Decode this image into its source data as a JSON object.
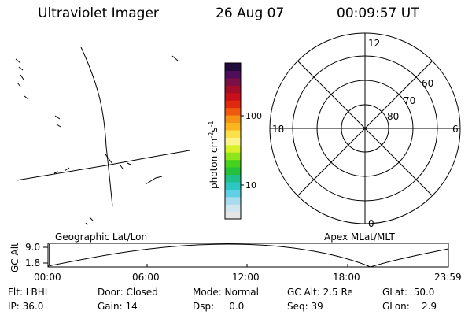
{
  "header": {
    "title": "Ultraviolet Imager",
    "date": "26 Aug 07",
    "time": "00:09:57 UT"
  },
  "colorbar": {
    "unit": "photon cm",
    "exp1": "-2",
    "s": "s",
    "exp2": "-1",
    "ticks": [
      "100",
      "10"
    ],
    "colors": [
      "#e6e6e6",
      "#cfe6ee",
      "#a8dcec",
      "#5fd0e6",
      "#2cc7c0",
      "#20c08a",
      "#25c13a",
      "#46d11c",
      "#8ee51a",
      "#d8f02a",
      "#fbf48a",
      "#fde04a",
      "#fbb51e",
      "#f69316",
      "#ef5a0e",
      "#e02a0e",
      "#c8101a",
      "#a40c2a",
      "#7a1046",
      "#4e0e5a",
      "#220c3c"
    ]
  },
  "polar": {
    "mlt": {
      "top": "12",
      "left": "18",
      "right": "6",
      "bottom": "0"
    },
    "mlat": [
      "60",
      "70",
      "80"
    ]
  },
  "timeline": {
    "left_label": "Geographic Lat/Lon",
    "right_label": "Apex MLat/MLT",
    "axis_label": "GC Alt",
    "ymax": "9.0",
    "ymin": "1.8",
    "ticks": [
      "00:00",
      "06:00",
      "12:00",
      "18:00",
      "23:59"
    ]
  },
  "info": {
    "flt": "Flt: LBHL",
    "ip": "IP: 36.0",
    "door": "Door: Closed",
    "gain": "Gain: 14",
    "mode": "Mode: Normal",
    "dsp": "Dsp:     0.0",
    "gcalt": "GC Alt: 2.5 Re",
    "seq": "Seq: 39",
    "glat": "GLat:  50.0",
    "glon": "GLon:    2.9"
  }
}
